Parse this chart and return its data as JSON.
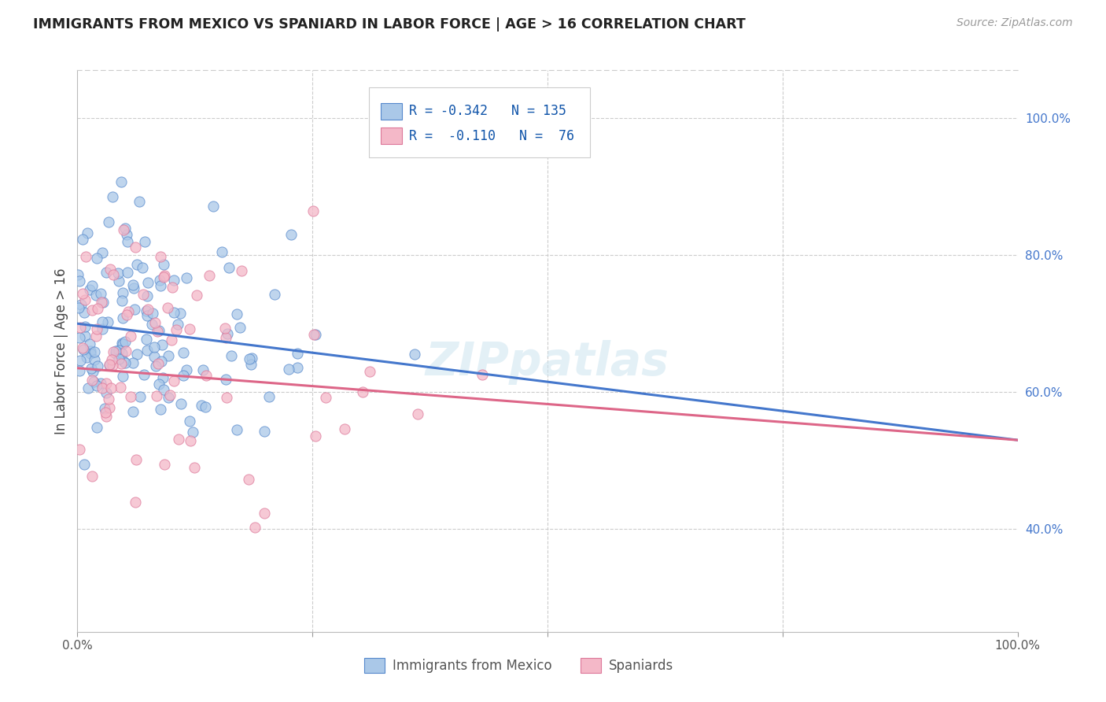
{
  "title": "IMMIGRANTS FROM MEXICO VS SPANIARD IN LABOR FORCE | AGE > 16 CORRELATION CHART",
  "source": "Source: ZipAtlas.com",
  "ylabel": "In Labor Force | Age > 16",
  "legend_blue_R": "-0.342",
  "legend_blue_N": "135",
  "legend_pink_R": "-0.110",
  "legend_pink_N": "76",
  "legend_label_blue": "Immigrants from Mexico",
  "legend_label_pink": "Spaniards",
  "blue_color": "#aac8e8",
  "blue_edge_color": "#5588cc",
  "blue_line_color": "#4477cc",
  "pink_color": "#f4b8c8",
  "pink_edge_color": "#dd7799",
  "pink_line_color": "#dd6688",
  "watermark": "ZIPpatlas",
  "xmin": 0.0,
  "xmax": 1.0,
  "ymin": 0.25,
  "ymax": 1.07,
  "blue_line_x0": 0.0,
  "blue_line_x1": 1.0,
  "blue_line_y0": 0.7,
  "blue_line_y1": 0.53,
  "pink_line_x0": 0.0,
  "pink_line_x1": 1.0,
  "pink_line_y0": 0.635,
  "pink_line_y1": 0.53,
  "right_yticks": [
    0.4,
    0.6,
    0.8,
    1.0
  ],
  "right_yticklabels": [
    "40.0%",
    "60.0%",
    "80.0%",
    "100.0%"
  ],
  "xtick_labels_positions": [
    0.0,
    1.0
  ],
  "xtick_labels": [
    "0.0%",
    "100.0%"
  ]
}
